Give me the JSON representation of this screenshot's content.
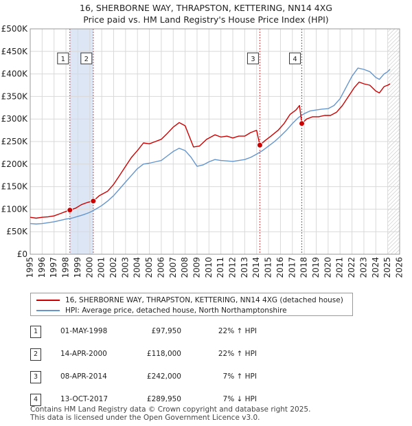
{
  "chart_data": {
    "type": "line",
    "title": "16, SHERBORNE WAY, THRAPSTON, KETTERING, NN14 4XG",
    "subtitle": "Price paid vs. HM Land Registry's House Price Index (HPI)",
    "xlabel": "",
    "ylabel": "",
    "xlim": [
      1995,
      2026
    ],
    "ylim": [
      0,
      500000
    ],
    "x_ticks": [
      "1995",
      "1996",
      "1997",
      "1998",
      "1999",
      "2000",
      "2001",
      "2002",
      "2003",
      "2004",
      "2005",
      "2006",
      "2007",
      "2008",
      "2009",
      "2010",
      "2011",
      "2012",
      "2013",
      "2014",
      "2015",
      "2016",
      "2017",
      "2018",
      "2019",
      "2020",
      "2021",
      "2022",
      "2023",
      "2024",
      "2025",
      "2026"
    ],
    "y_ticks": [
      {
        "value": 0,
        "label": "£0"
      },
      {
        "value": 50000,
        "label": "£50K"
      },
      {
        "value": 100000,
        "label": "£100K"
      },
      {
        "value": 150000,
        "label": "£150K"
      },
      {
        "value": 200000,
        "label": "£200K"
      },
      {
        "value": 250000,
        "label": "£250K"
      },
      {
        "value": 300000,
        "label": "£300K"
      },
      {
        "value": 350000,
        "label": "£350K"
      },
      {
        "value": 400000,
        "label": "£400K"
      },
      {
        "value": 450000,
        "label": "£450K"
      },
      {
        "value": 500000,
        "label": "£500K"
      }
    ],
    "grid": true,
    "shaded_spans": [
      [
        1998.33,
        2000.29
      ]
    ],
    "forecast_start": 2025.0,
    "series": [
      {
        "name": "16, SHERBORNE WAY, THRAPSTON, KETTERING, NN14 4XG (detached house)",
        "color": "#cc0000",
        "points": [
          [
            1995.0,
            82000
          ],
          [
            1995.5,
            80000
          ],
          [
            1996.0,
            82000
          ],
          [
            1996.5,
            83000
          ],
          [
            1997.0,
            85000
          ],
          [
            1997.5,
            90000
          ],
          [
            1998.0,
            95000
          ],
          [
            1998.33,
            97950
          ],
          [
            1998.8,
            102000
          ],
          [
            1999.3,
            110000
          ],
          [
            1999.8,
            115000
          ],
          [
            2000.29,
            118000
          ],
          [
            2000.8,
            130000
          ],
          [
            2001.5,
            140000
          ],
          [
            2002.0,
            155000
          ],
          [
            2002.5,
            175000
          ],
          [
            2003.0,
            195000
          ],
          [
            2003.5,
            215000
          ],
          [
            2004.0,
            230000
          ],
          [
            2004.5,
            247000
          ],
          [
            2005.0,
            245000
          ],
          [
            2005.5,
            250000
          ],
          [
            2006.0,
            255000
          ],
          [
            2006.5,
            268000
          ],
          [
            2007.0,
            282000
          ],
          [
            2007.5,
            292000
          ],
          [
            2008.0,
            285000
          ],
          [
            2008.3,
            265000
          ],
          [
            2008.7,
            238000
          ],
          [
            2009.2,
            240000
          ],
          [
            2009.8,
            255000
          ],
          [
            2010.5,
            265000
          ],
          [
            2011.0,
            260000
          ],
          [
            2011.5,
            262000
          ],
          [
            2012.0,
            258000
          ],
          [
            2012.5,
            262000
          ],
          [
            2013.0,
            262000
          ],
          [
            2013.5,
            270000
          ],
          [
            2014.0,
            275000
          ],
          [
            2014.27,
            242000
          ],
          [
            2014.7,
            252000
          ],
          [
            2015.2,
            262000
          ],
          [
            2015.8,
            275000
          ],
          [
            2016.3,
            290000
          ],
          [
            2016.8,
            310000
          ],
          [
            2017.3,
            320000
          ],
          [
            2017.6,
            330000
          ],
          [
            2017.79,
            289950
          ],
          [
            2018.2,
            300000
          ],
          [
            2018.7,
            305000
          ],
          [
            2019.2,
            305000
          ],
          [
            2019.7,
            308000
          ],
          [
            2020.2,
            308000
          ],
          [
            2020.7,
            315000
          ],
          [
            2021.2,
            330000
          ],
          [
            2021.7,
            350000
          ],
          [
            2022.2,
            370000
          ],
          [
            2022.6,
            382000
          ],
          [
            2023.0,
            378000
          ],
          [
            2023.5,
            375000
          ],
          [
            2024.0,
            362000
          ],
          [
            2024.3,
            358000
          ],
          [
            2024.7,
            372000
          ],
          [
            2025.0,
            375000
          ],
          [
            2025.2,
            378000
          ]
        ]
      },
      {
        "name": "HPI: Average price, detached house, North Northamptonshire",
        "color": "#6495cd",
        "points": [
          [
            1995.0,
            68000
          ],
          [
            1995.5,
            67000
          ],
          [
            1996.0,
            68000
          ],
          [
            1996.5,
            70000
          ],
          [
            1997.0,
            72000
          ],
          [
            1997.5,
            75000
          ],
          [
            1998.0,
            78000
          ],
          [
            1998.5,
            80000
          ],
          [
            1999.0,
            84000
          ],
          [
            1999.5,
            88000
          ],
          [
            2000.0,
            93000
          ],
          [
            2000.5,
            100000
          ],
          [
            2001.0,
            108000
          ],
          [
            2001.5,
            118000
          ],
          [
            2002.0,
            130000
          ],
          [
            2002.5,
            145000
          ],
          [
            2003.0,
            160000
          ],
          [
            2003.5,
            175000
          ],
          [
            2004.0,
            190000
          ],
          [
            2004.5,
            200000
          ],
          [
            2005.0,
            202000
          ],
          [
            2005.5,
            205000
          ],
          [
            2006.0,
            208000
          ],
          [
            2006.5,
            218000
          ],
          [
            2007.0,
            228000
          ],
          [
            2007.5,
            235000
          ],
          [
            2008.0,
            230000
          ],
          [
            2008.5,
            215000
          ],
          [
            2009.0,
            195000
          ],
          [
            2009.5,
            198000
          ],
          [
            2010.0,
            205000
          ],
          [
            2010.5,
            210000
          ],
          [
            2011.0,
            208000
          ],
          [
            2011.5,
            207000
          ],
          [
            2012.0,
            206000
          ],
          [
            2012.5,
            208000
          ],
          [
            2013.0,
            210000
          ],
          [
            2013.5,
            215000
          ],
          [
            2014.0,
            222000
          ],
          [
            2014.5,
            230000
          ],
          [
            2015.0,
            240000
          ],
          [
            2015.5,
            250000
          ],
          [
            2016.0,
            262000
          ],
          [
            2016.5,
            275000
          ],
          [
            2017.0,
            290000
          ],
          [
            2017.5,
            303000
          ],
          [
            2018.0,
            312000
          ],
          [
            2018.5,
            318000
          ],
          [
            2019.0,
            320000
          ],
          [
            2019.5,
            322000
          ],
          [
            2020.0,
            323000
          ],
          [
            2020.5,
            330000
          ],
          [
            2021.0,
            345000
          ],
          [
            2021.5,
            370000
          ],
          [
            2022.0,
            395000
          ],
          [
            2022.5,
            413000
          ],
          [
            2023.0,
            410000
          ],
          [
            2023.5,
            405000
          ],
          [
            2024.0,
            392000
          ],
          [
            2024.3,
            388000
          ],
          [
            2024.7,
            400000
          ],
          [
            2025.0,
            405000
          ],
          [
            2025.2,
            410000
          ]
        ]
      }
    ],
    "sales": [
      {
        "id": "1",
        "x": 1998.33,
        "value": 97950
      },
      {
        "id": "2",
        "x": 2000.29,
        "value": 118000
      },
      {
        "id": "3",
        "x": 2014.27,
        "value": 242000
      },
      {
        "id": "4",
        "x": 2017.79,
        "value": 289950
      }
    ]
  },
  "header": {
    "title": "16, SHERBORNE WAY, THRAPSTON, KETTERING, NN14 4XG",
    "subtitle": "Price paid vs. HM Land Registry's House Price Index (HPI)"
  },
  "legend": {
    "property_label": "16, SHERBORNE WAY, THRAPSTON, KETTERING, NN14 4XG (detached house)",
    "hpi_label": "HPI: Average price, detached house, North Northamptonshire",
    "property_color": "#cc0000",
    "hpi_color": "#6495cd"
  },
  "table": {
    "rows": [
      {
        "id": "1",
        "date": "01-MAY-1998",
        "price": "£97,950",
        "hpi": "22% ↑ HPI"
      },
      {
        "id": "2",
        "date": "14-APR-2000",
        "price": "£118,000",
        "hpi": "22% ↑ HPI"
      },
      {
        "id": "3",
        "date": "08-APR-2014",
        "price": "£242,000",
        "hpi": "7% ↑ HPI"
      },
      {
        "id": "4",
        "date": "13-OCT-2017",
        "price": "£289,950",
        "hpi": "7% ↓ HPI"
      }
    ]
  },
  "footer": {
    "line1": "Contains HM Land Registry data © Crown copyright and database right 2025.",
    "line2": "This data is licensed under the Open Government Licence v3.0."
  }
}
